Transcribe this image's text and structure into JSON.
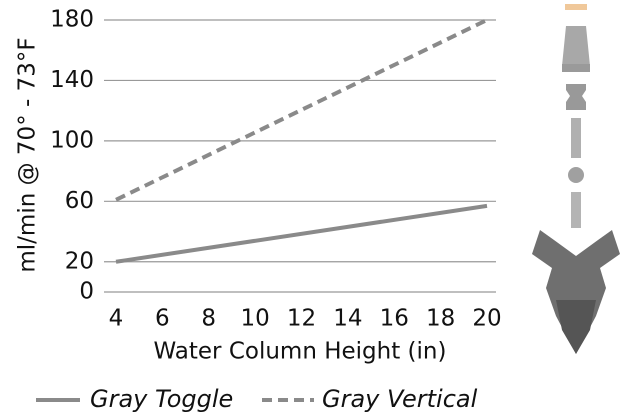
{
  "chart_data": {
    "type": "line",
    "x": [
      4,
      20
    ],
    "xlabel": "Water Column Height (in)",
    "ylabel": "ml/min @ 70° - 73°F",
    "series": [
      {
        "name": "Gray Toggle",
        "color": "#8a8a8a",
        "dash": false,
        "values": [
          20,
          57
        ]
      },
      {
        "name": "Gray Vertical",
        "color": "#8a8a8a",
        "dash": true,
        "values": [
          61,
          180
        ]
      }
    ],
    "xlim": [
      4,
      20
    ],
    "xticks": [
      4,
      6,
      8,
      10,
      12,
      14,
      16,
      18,
      20
    ],
    "ylim": [
      0,
      180
    ],
    "yticks": [
      0,
      20,
      60,
      100,
      140,
      180
    ],
    "grid": true
  }
}
